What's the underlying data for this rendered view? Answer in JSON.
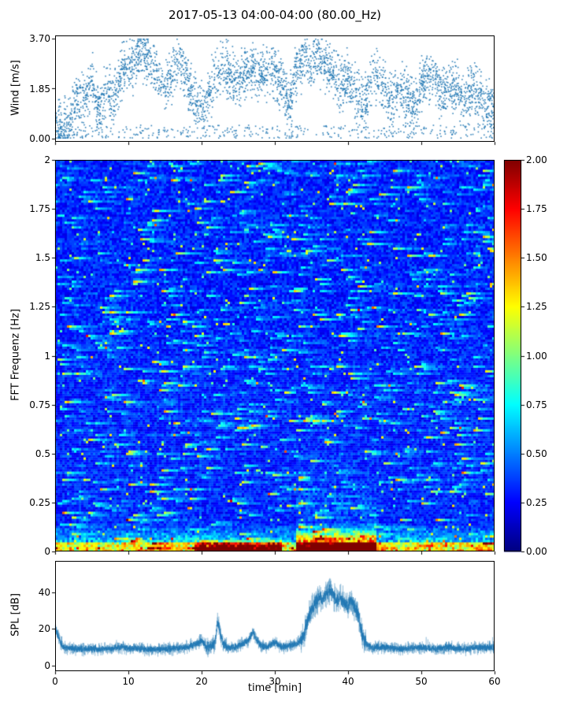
{
  "title": "2017-05-13 04:00-04:00 (80.00_Hz)",
  "accent_color": "#1f77b4",
  "chart_data": [
    {
      "type": "scatter",
      "title": "2017-05-13 04:00-04:00 (80.00_Hz)",
      "ylabel": "Wind [m/s]",
      "xlim": [
        0,
        60
      ],
      "ylim": [
        0.0,
        3.7
      ],
      "yticks": {
        "values": [
          0,
          1.85,
          3.7
        ],
        "labels": [
          "0.00",
          "1.85",
          "3.70"
        ]
      },
      "marker_color": "#1f77b4",
      "n_points": 3800,
      "mean_wind_keypoints": [
        [
          0,
          0.5
        ],
        [
          1,
          0.4
        ],
        [
          2,
          0.5
        ],
        [
          3,
          1.6
        ],
        [
          4,
          1.2
        ],
        [
          5,
          2.2
        ],
        [
          6,
          0.8
        ],
        [
          7,
          1.8
        ],
        [
          8,
          1.4
        ],
        [
          9,
          2.4
        ],
        [
          10,
          2.6
        ],
        [
          11,
          2.8
        ],
        [
          12,
          3.1
        ],
        [
          13,
          2.8
        ],
        [
          14,
          2.2
        ],
        [
          15,
          1.8
        ],
        [
          16,
          2.4
        ],
        [
          17,
          2.9
        ],
        [
          18,
          2.2
        ],
        [
          19,
          1.4
        ],
        [
          20,
          1.0
        ],
        [
          21,
          1.6
        ],
        [
          22,
          2.4
        ],
        [
          23,
          2.7
        ],
        [
          24,
          2.3
        ],
        [
          25,
          2.0
        ],
        [
          26,
          2.4
        ],
        [
          27,
          2.6
        ],
        [
          28,
          2.2
        ],
        [
          29,
          2.4
        ],
        [
          30,
          2.5
        ],
        [
          31,
          2.0
        ],
        [
          32,
          1.2
        ],
        [
          33,
          2.6
        ],
        [
          34,
          3.0
        ],
        [
          35,
          2.6
        ],
        [
          36,
          3.1
        ],
        [
          37,
          2.7
        ],
        [
          38,
          2.3
        ],
        [
          39,
          1.9
        ],
        [
          40,
          2.1
        ],
        [
          41,
          1.6
        ],
        [
          42,
          1.1
        ],
        [
          43,
          1.9
        ],
        [
          44,
          2.3
        ],
        [
          45,
          1.7
        ],
        [
          46,
          1.3
        ],
        [
          47,
          1.9
        ],
        [
          48,
          1.5
        ],
        [
          49,
          1.1
        ],
        [
          50,
          2.1
        ],
        [
          51,
          2.3
        ],
        [
          52,
          1.9
        ],
        [
          53,
          1.5
        ],
        [
          54,
          1.9
        ],
        [
          55,
          1.7
        ],
        [
          56,
          1.3
        ],
        [
          57,
          1.9
        ],
        [
          58,
          1.5
        ],
        [
          59,
          1.1
        ],
        [
          60,
          0.9
        ]
      ]
    },
    {
      "type": "heatmap",
      "ylabel": "FFT Frequenz [Hz]",
      "xlim": [
        0,
        60
      ],
      "ylim": [
        0,
        2
      ],
      "yticks": {
        "values": [
          0,
          0.25,
          0.5,
          0.75,
          1,
          1.25,
          1.5,
          1.75,
          2
        ],
        "labels": [
          "0",
          "0.25",
          "0.5",
          "0.75",
          "1",
          "1.25",
          "1.5",
          "1.75",
          "2"
        ]
      },
      "colormap": "jet",
      "value_range": [
        0,
        2
      ],
      "background_level": 0.3,
      "colorbar_ticks": {
        "values": [
          0,
          0.25,
          0.5,
          0.75,
          1,
          1.25,
          1.5,
          1.75,
          2
        ],
        "labels": [
          "0.00",
          "0.25",
          "0.50",
          "0.75",
          "1.00",
          "1.25",
          "1.50",
          "1.75",
          "2.00"
        ]
      },
      "features": [
        {
          "desc": "mostly blue background ~0.2-0.5 with horizontal cyan/green noise streaks"
        },
        {
          "desc": "elevated energy (green/yellow) below 0.15 Hz across all times"
        },
        {
          "desc": "strong red band 0-0.06 Hz at t = 19-31 min"
        },
        {
          "desc": "strongest red/orange band 0-0.12 Hz at t = 33-44 min, elevated streaks up to ~0.5 Hz"
        }
      ]
    },
    {
      "type": "line",
      "ylabel": "SPL [dB]",
      "xlabel": "time [min]",
      "xlim": [
        0,
        60
      ],
      "ylim": [
        0,
        50
      ],
      "xticks": {
        "values": [
          0,
          10,
          20,
          30,
          40,
          50,
          60
        ],
        "labels": [
          "0",
          "10",
          "20",
          "30",
          "40",
          "50",
          "60"
        ]
      },
      "yticks": {
        "values": [
          0,
          20,
          40
        ],
        "labels": [
          "0",
          "20",
          "40"
        ]
      },
      "line_color": "#1f77b4",
      "baseline_keypoints": [
        [
          0,
          21
        ],
        [
          0.4,
          16
        ],
        [
          1,
          10
        ],
        [
          3,
          9
        ],
        [
          6,
          9
        ],
        [
          9,
          10
        ],
        [
          12,
          9
        ],
        [
          15,
          9
        ],
        [
          18,
          10
        ],
        [
          19.5,
          12
        ],
        [
          20,
          14
        ],
        [
          20.5,
          11
        ],
        [
          21,
          10
        ],
        [
          21.8,
          12
        ],
        [
          22.2,
          24
        ],
        [
          22.6,
          17
        ],
        [
          23,
          12
        ],
        [
          23.5,
          10
        ],
        [
          24.5,
          10
        ],
        [
          25.5,
          12
        ],
        [
          26.5,
          14
        ],
        [
          27,
          19
        ],
        [
          27.4,
          15
        ],
        [
          28,
          11
        ],
        [
          29,
          10
        ],
        [
          30,
          13
        ],
        [
          30.5,
          11
        ],
        [
          31,
          10
        ],
        [
          32,
          11
        ],
        [
          33,
          12
        ],
        [
          34,
          16
        ],
        [
          34.6,
          26
        ],
        [
          35,
          31
        ],
        [
          35.5,
          34
        ],
        [
          36,
          37
        ],
        [
          36.5,
          36
        ],
        [
          37,
          39
        ],
        [
          37.5,
          41
        ],
        [
          38,
          38
        ],
        [
          38.5,
          35
        ],
        [
          39,
          37
        ],
        [
          39.5,
          34
        ],
        [
          40,
          32
        ],
        [
          40.4,
          36
        ],
        [
          41,
          31
        ],
        [
          41.5,
          26
        ],
        [
          42,
          16
        ],
        [
          42.5,
          12
        ],
        [
          43,
          10
        ],
        [
          45,
          10
        ],
        [
          47,
          9
        ],
        [
          50,
          10
        ],
        [
          52,
          9
        ],
        [
          54,
          10
        ],
        [
          56,
          9
        ],
        [
          58,
          10
        ],
        [
          60,
          10
        ]
      ]
    }
  ]
}
